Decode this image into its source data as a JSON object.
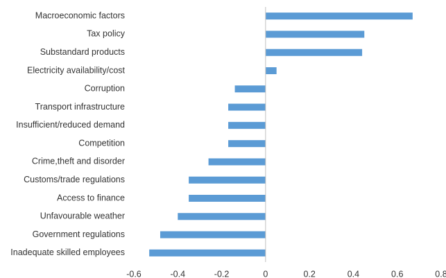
{
  "chart_data": {
    "type": "hbar",
    "categories": [
      "Macroeconomic factors",
      "Tax policy",
      "Substandard products",
      "Electricity availability/cost",
      "Corruption",
      "Transport infrastructure",
      "Insufficient/reduced demand",
      "Competition",
      "Crime,theft and disorder",
      "Customs/trade regulations",
      "Access to finance",
      "Unfavourable weather",
      "Government regulations",
      "Inadequate skilled employees"
    ],
    "values": [
      0.67,
      0.45,
      0.44,
      0.05,
      -0.14,
      -0.17,
      -0.17,
      -0.17,
      -0.26,
      -0.35,
      -0.35,
      -0.4,
      -0.48,
      -0.53
    ],
    "color": "#5b9bd5",
    "xlim": [
      -0.6,
      0.8
    ],
    "xticks": [
      -0.6,
      -0.4,
      -0.2,
      0,
      0.2,
      0.4,
      0.6,
      0.8
    ],
    "grid": false
  }
}
